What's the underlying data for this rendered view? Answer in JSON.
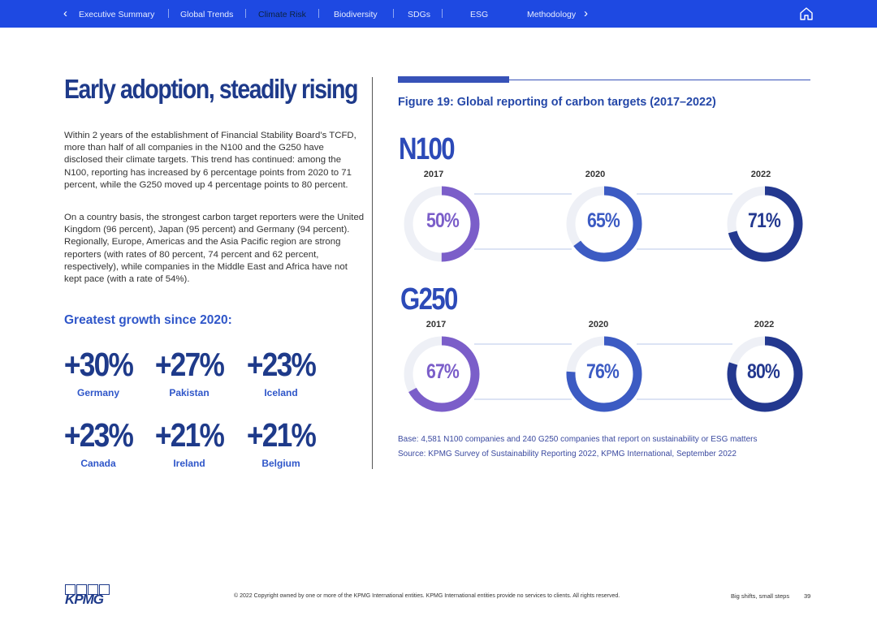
{
  "nav": {
    "items": [
      "Executive Summary",
      "Global Trends",
      "Climate Risk",
      "Biodiversity",
      "SDGs",
      "ESG",
      "Methodology"
    ],
    "active": "Climate Risk",
    "prev_icon": "chevron-left-icon",
    "next_icon": "chevron-right-icon",
    "home_icon": "home-icon"
  },
  "left": {
    "headline": "Early adoption, steadily rising",
    "paragraph1": "Within 2 years of the establishment of Financial Stability Board’s TCFD, more than half of all companies in the N100 and the G250 have disclosed their climate targets. This trend has continued: among the N100, reporting has increased by 6 percentage points from 2020 to 71 percent, while the G250 moved up 4 percentage points to 80 percent.",
    "paragraph2": "On a country basis, the strongest carbon target reporters were the United Kingdom (96 percent), Japan (95 percent) and Germany (94 percent). Regionally, Europe, Americas and the Asia Pacific region are strong reporters (with rates of 80 percent, 74 percent and 62 percent, respectively), while companies in the Middle East and Africa have not kept pace (with a rate of 54%).",
    "growth_title": "Greatest growth since 2020:",
    "growth": [
      {
        "value": "+30%",
        "country": "Germany"
      },
      {
        "value": "+27%",
        "country": "Pakistan"
      },
      {
        "value": "+23%",
        "country": "Iceland"
      },
      {
        "value": "+23%",
        "country": "Canada"
      },
      {
        "value": "+21%",
        "country": "Ireland"
      },
      {
        "value": "+21%",
        "country": "Belgium"
      }
    ]
  },
  "figure": {
    "title": "Figure 19: Global reporting of carbon targets (2017–2022)",
    "base_note": "Base: 4,581 N100 companies and 240 G250 companies that report on sustainability or ESG matters",
    "source_note": "Source: KPMG Survey of Sustainability Reporting 2022, KPMG International, September 2022"
  },
  "chart_data": {
    "type": "donut",
    "title": "Figure 19: Global reporting of carbon targets (2017–2022)",
    "years": [
      "2017",
      "2020",
      "2022"
    ],
    "series": [
      {
        "name": "N100",
        "values": [
          50,
          65,
          71
        ],
        "labels": [
          "50%",
          "65%",
          "71%"
        ]
      },
      {
        "name": "G250",
        "values": [
          67,
          76,
          80
        ],
        "labels": [
          "67%",
          "76%",
          "80%"
        ]
      }
    ],
    "colors": [
      "#7b5ec9",
      "#3c5bc3",
      "#23388f"
    ],
    "track_color": "#eef0f6",
    "unit": "percent"
  },
  "footer": {
    "logo": "KPMG",
    "copyright": "© 2022 Copyright owned by one or more of the KPMG International entities. KPMG International entities provide no services to clients. All rights reserved.",
    "tagline": "Big shifts, small steps",
    "page": "39"
  }
}
